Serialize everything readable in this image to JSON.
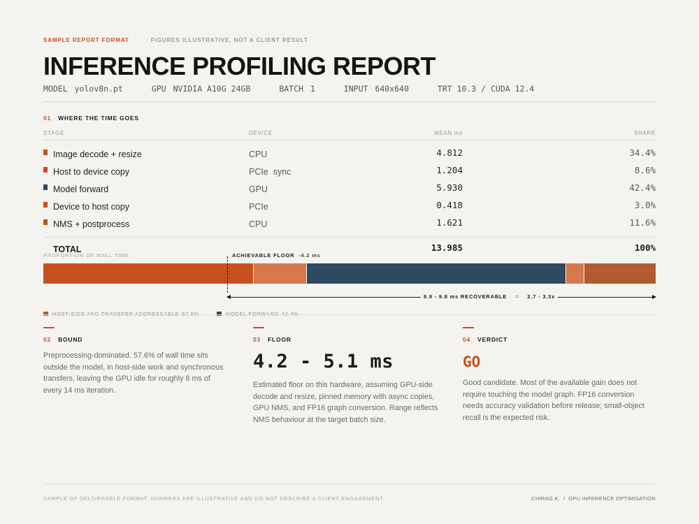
{
  "header": {
    "tag": "SAMPLE REPORT FORMAT",
    "note": "FIGURES ILLUSTRATIVE, NOT A CLIENT RESULT",
    "title": "INFERENCE PROFILING REPORT",
    "meta": [
      {
        "label": "MODEL",
        "value": "yolov8n.pt"
      },
      {
        "label": "GPU",
        "value": "NVIDIA A10G 24GB"
      },
      {
        "label": "BATCH",
        "value": "1"
      },
      {
        "label": "INPUT",
        "value": "640x640"
      },
      {
        "label": "",
        "value": "TRT 10.3 / CUDA 12.4"
      }
    ]
  },
  "section1": {
    "num": "01",
    "title": "WHERE THE TIME GOES",
    "columns": {
      "stage": "STAGE",
      "device": "DEVICE",
      "mean": "MEAN ms",
      "share": "SHARE"
    },
    "rows": [
      {
        "stage": "Image decode + resize",
        "device": "CPU",
        "mean": "4.812",
        "share": "34.4%",
        "color": "#c8501e"
      },
      {
        "stage": "Host to device copy",
        "device": "PCIe  sync",
        "mean": "1.204",
        "share": "8.6%",
        "color": "#c8501e"
      },
      {
        "stage": "Model forward",
        "device": "GPU",
        "mean": "5.930",
        "share": "42.4%",
        "color": "#2f4a60"
      },
      {
        "stage": "Device to host copy",
        "device": "PCIe",
        "mean": "0.418",
        "share": "3.0%",
        "color": "#c8501e"
      },
      {
        "stage": "NMS + postprocess",
        "device": "CPU",
        "mean": "1.621",
        "share": "11.6%",
        "color": "#c8501e"
      }
    ],
    "total": {
      "label": "TOTAL",
      "mean": "13.985",
      "share": "100%"
    }
  },
  "bar": {
    "label": "PROPORTION OF WALL TIME",
    "floor_label": "ACHIEVABLE FLOOR",
    "floor_value": "-4.2 ms",
    "segments": [
      {
        "name": "Image decode + resize",
        "share": 34.4,
        "color": "#c8501e"
      },
      {
        "name": "Host to device copy",
        "share": 8.6,
        "color": "#d6774c"
      },
      {
        "name": "Model forward",
        "share": 42.4,
        "color": "#2f4a60"
      },
      {
        "name": "Device to host copy",
        "share": 3.0,
        "color": "#d6774c"
      },
      {
        "name": "NMS + postprocess",
        "share": 11.6,
        "color": "#b35a31"
      }
    ],
    "recoverable": "8.9 - 9.8 ms RECOVERABLE",
    "sep": "=",
    "speedup": "2.7 - 3.3x",
    "legend": [
      {
        "label": "HOST-SIDE AND TRANSFER  ADDRESSABLE",
        "pct": "57.6%",
        "color": "#c8501e"
      },
      {
        "label": "MODEL FORWARD",
        "pct": "42.4%",
        "color": "#2f4a60"
      }
    ]
  },
  "cards": [
    {
      "num": "02",
      "title": "BOUND",
      "body": "Preprocessing-dominated. 57.6% of wall time sits outside the model, in host-side work and synchronous transfers, leaving the GPU idle for roughly 8 ms of every 14 ms iteration."
    },
    {
      "num": "03",
      "title": "FLOOR",
      "big": "4.2 - 5.1 ms",
      "body": "Estimated floor on this hardware, assuming GPU-side decode and resize, pinned memory with async copies, GPU NMS, and FP16 graph conversion. Range reflects NMS behaviour at the target batch size."
    },
    {
      "num": "04",
      "title": "VERDICT",
      "big": "GO",
      "body": "Good candidate. Most of the available gain does not require touching the model graph. FP16 conversion needs accuracy validation before release; small-object recall is the expected risk."
    }
  ],
  "footer": {
    "left": "SAMPLE OF DELIVERABLE FORMAT. NUMBERS ARE ILLUSTRATIVE AND DO NOT DESCRIBE A CLIENT ENGAGEMENT.",
    "right": "CHIRAG K.  /  GPU INFERENCE OPTIMISATION"
  }
}
